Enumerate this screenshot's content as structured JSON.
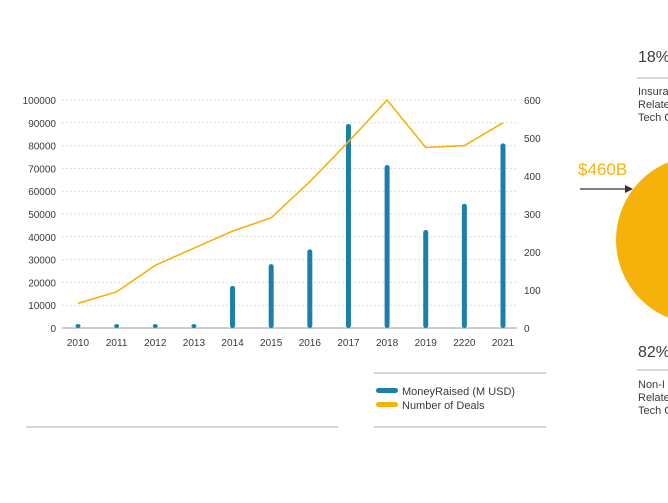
{
  "chart_data": {
    "type": "bar+line",
    "categories": [
      "2010",
      "2011",
      "2012",
      "2013",
      "2014",
      "2015",
      "2016",
      "2017",
      "2018",
      "2019",
      "2220",
      "2021"
    ],
    "series": [
      {
        "name": "MoneyRaised (M USD)",
        "type": "bar",
        "axis": "left",
        "values": [
          800,
          1200,
          1700,
          1000,
          18500,
          28000,
          34500,
          89500,
          71500,
          43000,
          54500,
          81000
        ]
      },
      {
        "name": "Number of Deals",
        "type": "line",
        "axis": "right",
        "values": [
          65,
          95,
          165,
          210,
          255,
          290,
          385,
          490,
          600,
          475,
          480,
          540
        ]
      }
    ],
    "y_left": {
      "ticks": [
        "0",
        "10000",
        "20000",
        "30000",
        "40000",
        "50000",
        "60000",
        "70000",
        "80000",
        "90000",
        "100000"
      ],
      "range": [
        0,
        100000
      ]
    },
    "y_right": {
      "ticks": [
        "0",
        "100",
        "200",
        "300",
        "400",
        "500",
        "600"
      ],
      "range": [
        0,
        600
      ]
    },
    "colors": {
      "bar": "#1b7fab",
      "line": "#f5b20a"
    },
    "grid": true,
    "legend_position": "bottom-right"
  },
  "side_panel": {
    "top_percent": "18%",
    "top_label_lines": [
      "Insura",
      "Relate",
      "Tech C"
    ],
    "total_label": "$460B",
    "bottom_percent": "82%",
    "bottom_label_lines": [
      "Non-I",
      "Relate",
      "Tech C"
    ],
    "pie_values_percent": [
      18,
      82
    ],
    "pie_colors": [
      "#fad36b",
      "#f5b20a"
    ]
  }
}
